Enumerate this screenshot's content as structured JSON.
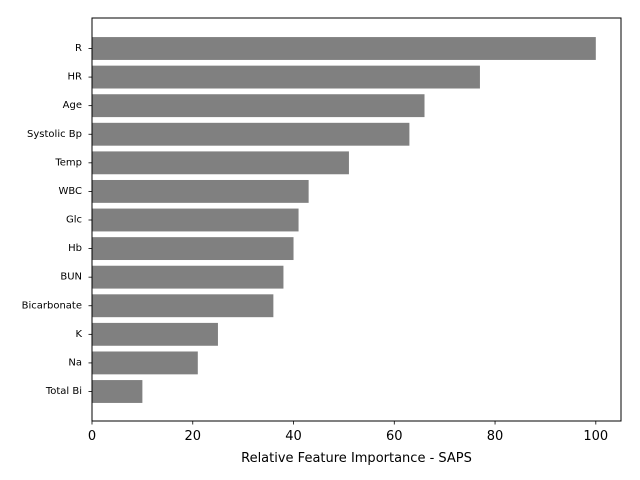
{
  "chart_data": {
    "type": "bar",
    "orientation": "horizontal",
    "title": "",
    "xlabel": "Relative Feature Importance - SAPS",
    "ylabel": "",
    "categories": [
      "R",
      "HR",
      "Age",
      "Systolic Bp",
      "Temp",
      "WBC",
      "Glc",
      "Hb",
      "BUN",
      "Bicarbonate",
      "K",
      "Na",
      "Total Bi"
    ],
    "values": [
      100,
      77,
      66,
      63,
      51,
      43,
      41,
      40,
      38,
      36,
      25,
      21,
      10
    ],
    "xlim": [
      0,
      105
    ],
    "x_ticks": [
      "0",
      "20",
      "40",
      "60",
      "80",
      "100"
    ],
    "bar_color": "#808080",
    "grid": false,
    "legend": "none"
  }
}
